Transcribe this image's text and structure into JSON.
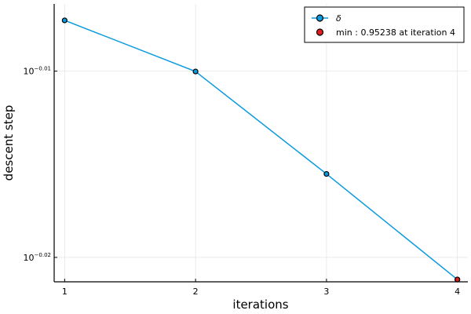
{
  "chart_data": {
    "type": "line",
    "xlabel": "iterations",
    "ylabel": "descent step",
    "x_ticks": [
      1,
      2,
      3,
      4
    ],
    "y_scale": "log10",
    "y_ticks": [
      {
        "value": 0.97724,
        "base": "10",
        "exponent": "−0.01"
      },
      {
        "value": 0.95499,
        "base": "10",
        "exponent": "−0.02"
      }
    ],
    "xlim": [
      0.92,
      4.08
    ],
    "ylim": [
      0.95211,
      0.9854
    ],
    "grid": true,
    "legend_position": "top-right",
    "series": [
      {
        "name": "δ",
        "style": "line+markers",
        "color": "#0a9bde",
        "marker_fill": "#0a9bde",
        "x": [
          1,
          2,
          3,
          4
        ],
        "y": [
          0.9834,
          0.9772,
          0.9649,
          0.95238
        ]
      }
    ],
    "minimum": {
      "label": "min : 0.95238 at iteration 4",
      "x": 4,
      "y": 0.95238,
      "color": "#e21d1d"
    }
  }
}
